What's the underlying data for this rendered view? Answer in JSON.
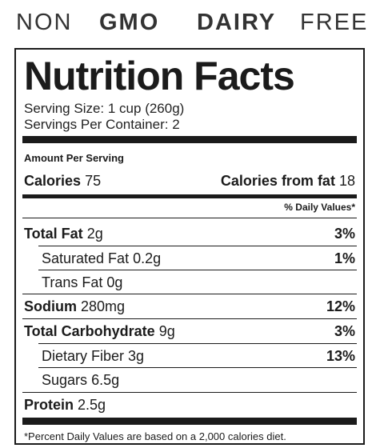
{
  "banner": {
    "part1": "NON",
    "part2": "GMO",
    "part3": "DAIRY",
    "part4": "FREE"
  },
  "label": {
    "title": "Nutrition Facts",
    "serving_size": "Serving Size: 1 cup (260g)",
    "servings_per_container": "Servings Per Container: 2",
    "amount_per_serving": "Amount Per Serving",
    "calories": {
      "label": "Calories",
      "value": "75"
    },
    "calories_from_fat": {
      "label": "Calories from fat",
      "value": "18"
    },
    "daily_values_header": "% Daily Values*",
    "nutrients": [
      {
        "name": "Total Fat",
        "amount": "2g",
        "dv": "3%"
      },
      {
        "name": "Saturated Fat",
        "amount": "0.2g",
        "dv": "1%"
      },
      {
        "name": "Trans Fat",
        "amount": "0g",
        "dv": ""
      },
      {
        "name": "Sodium",
        "amount": "280mg",
        "dv": "12%"
      },
      {
        "name": "Total Carbohydrate",
        "amount": "9g",
        "dv": "3%"
      },
      {
        "name": "Dietary Fiber",
        "amount": "3g",
        "dv": "13%"
      },
      {
        "name": "Sugars",
        "amount": "6.5g",
        "dv": ""
      },
      {
        "name": "Protein",
        "amount": "2.5g",
        "dv": ""
      }
    ],
    "footnote": "*Percent Daily Values are based on a 2,000 calories diet."
  }
}
